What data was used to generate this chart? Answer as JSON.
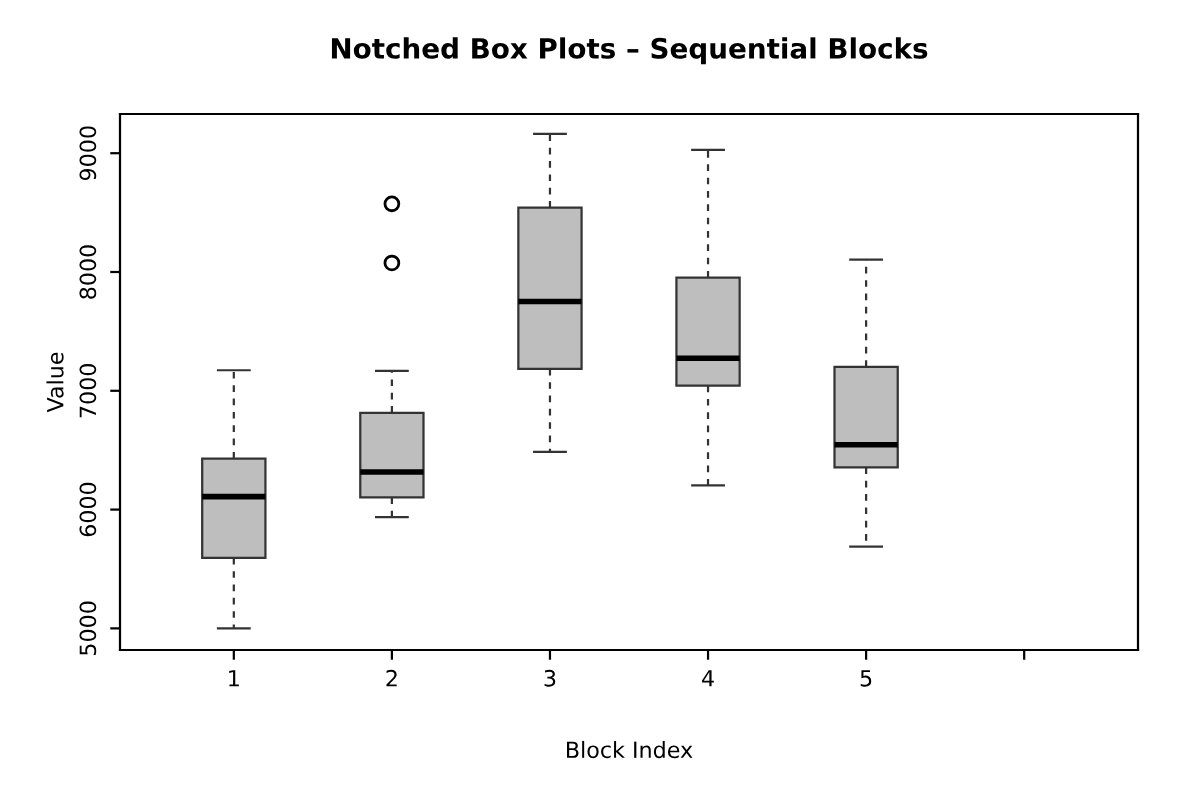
{
  "chart_data": {
    "type": "box",
    "title": "Notched Box Plots – Sequential Blocks",
    "xlabel": "Block Index",
    "ylabel": "Value",
    "categories": [
      "1",
      "2",
      "3",
      "4",
      "5",
      null
    ],
    "series": [
      {
        "color": "#bebebe",
        "boxes": [
          {
            "low": 5000,
            "q1": 5594,
            "median": 6109,
            "q3": 6429,
            "high": 7173
          },
          {
            "low": 5936,
            "q1": 6103,
            "median": 6317,
            "q3": 6815,
            "high": 7168,
            "outliers": [
              8076,
              8574
            ]
          },
          {
            "low": 6485,
            "q1": 7185,
            "median": 7751,
            "q3": 8541,
            "high": 9163
          },
          {
            "low": 6204,
            "q1": 7044,
            "median": 7274,
            "q3": 7952,
            "high": 9028
          },
          {
            "low": 5689,
            "q1": 6355,
            "median": 6546,
            "q3": 7202,
            "high": 8104
          },
          null
        ]
      }
    ],
    "ylim": [
      4818,
      9330
    ],
    "yticks": [
      5000,
      6000,
      7000,
      8000,
      9000
    ],
    "grid": false
  }
}
